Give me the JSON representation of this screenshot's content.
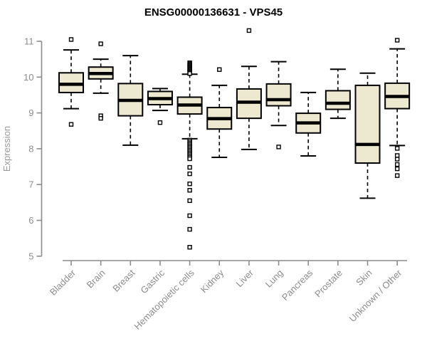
{
  "chart_data": {
    "type": "boxplot",
    "title": "ENSG00000136631 - VPS45",
    "ylabel": "Expression",
    "xlabel": "",
    "ylim": [
      5,
      11
    ],
    "yticks": [
      5,
      6,
      7,
      8,
      9,
      10,
      11
    ],
    "grid": false,
    "legend": "none",
    "categories": [
      "Bladder",
      "Brain",
      "Breast",
      "Gastric",
      "Hematopoietic cells",
      "Kidney",
      "Liver",
      "Lung",
      "Pancreas",
      "Prostate",
      "Skin",
      "Unknown / Other"
    ],
    "boxes": [
      {
        "label": "Bladder",
        "whisker_low": 9.12,
        "q1": 9.57,
        "median": 9.8,
        "q3": 10.12,
        "whisker_high": 10.76,
        "outliers": [
          11.05,
          8.68
        ]
      },
      {
        "label": "Brain",
        "whisker_low": 9.55,
        "q1": 9.95,
        "median": 10.1,
        "q3": 10.28,
        "whisker_high": 10.5,
        "outliers": [
          10.93,
          8.92,
          8.85
        ]
      },
      {
        "label": "Breast",
        "whisker_low": 8.1,
        "q1": 8.92,
        "median": 9.35,
        "q3": 9.82,
        "whisker_high": 10.6,
        "outliers": []
      },
      {
        "label": "Gastric",
        "whisker_low": 9.07,
        "q1": 9.23,
        "median": 9.4,
        "q3": 9.6,
        "whisker_high": 9.68,
        "outliers": [
          8.73
        ]
      },
      {
        "label": "Hematopoietic cells",
        "whisker_low": 8.28,
        "q1": 8.97,
        "median": 9.22,
        "q3": 9.44,
        "whisker_high": 10.08,
        "outliers": [
          10.4,
          10.37,
          10.34,
          10.31,
          10.28,
          10.25,
          10.22,
          10.19,
          10.16,
          10.13,
          10.1,
          8.24,
          8.2,
          8.16,
          8.12,
          8.08,
          8.04,
          8.0,
          7.96,
          7.92,
          7.88,
          7.84,
          7.8,
          7.76,
          7.72,
          7.48,
          7.3,
          7.02,
          6.84,
          6.55,
          6.13,
          5.75,
          5.25
        ]
      },
      {
        "label": "Kidney",
        "whisker_low": 7.76,
        "q1": 8.55,
        "median": 8.84,
        "q3": 9.15,
        "whisker_high": 9.77,
        "outliers": [
          10.21
        ]
      },
      {
        "label": "Liver",
        "whisker_low": 7.98,
        "q1": 8.85,
        "median": 9.3,
        "q3": 9.67,
        "whisker_high": 10.3,
        "outliers": [
          11.3
        ]
      },
      {
        "label": "Lung",
        "whisker_low": 8.65,
        "q1": 9.2,
        "median": 9.37,
        "q3": 9.81,
        "whisker_high": 10.43,
        "outliers": [
          8.05
        ]
      },
      {
        "label": "Pancreas",
        "whisker_low": 7.8,
        "q1": 8.44,
        "median": 8.72,
        "q3": 8.99,
        "whisker_high": 9.57,
        "outliers": []
      },
      {
        "label": "Prostate",
        "whisker_low": 8.85,
        "q1": 9.1,
        "median": 9.27,
        "q3": 9.62,
        "whisker_high": 10.22,
        "outliers": []
      },
      {
        "label": "Skin",
        "whisker_low": 6.62,
        "q1": 7.6,
        "median": 8.12,
        "q3": 9.77,
        "whisker_high": 10.11,
        "outliers": []
      },
      {
        "label": "Unknown / Other",
        "whisker_low": 8.09,
        "q1": 9.12,
        "median": 9.46,
        "q3": 9.83,
        "whisker_high": 10.79,
        "outliers": [
          11.03,
          8.01,
          7.81,
          7.71,
          7.56,
          7.44,
          7.25
        ]
      }
    ],
    "colors": {
      "box_fill": "#EDE8D0",
      "box_border": "#000000",
      "median": "#000000",
      "whisker": "#000000",
      "outlier_fill": "#ffffff",
      "outlier_border": "#000000",
      "axis": "#8c8c8c",
      "tick_label": "#8c8c8c",
      "title": "#000000"
    }
  }
}
